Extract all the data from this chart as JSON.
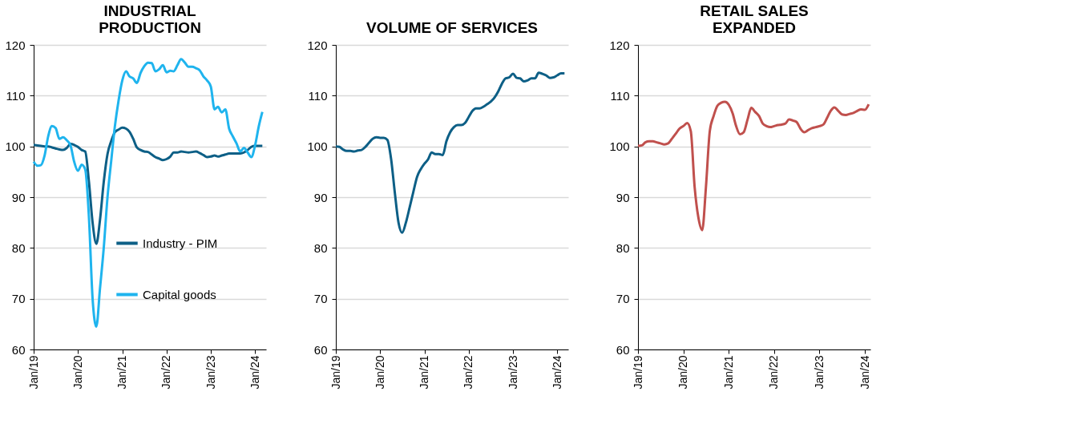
{
  "chart_data": [
    {
      "type": "line",
      "title": "INDUSTRIAL\nPRODUCTION",
      "x": [
        "2019-01",
        "2019-02",
        "2019-03",
        "2019-04",
        "2019-05",
        "2019-06",
        "2019-07",
        "2019-08",
        "2019-09",
        "2019-10",
        "2019-11",
        "2019-12",
        "2020-01",
        "2020-02",
        "2020-03",
        "2020-04",
        "2020-05",
        "2020-06",
        "2020-07",
        "2020-08",
        "2020-09",
        "2020-10",
        "2020-11",
        "2020-12",
        "2021-01",
        "2021-02",
        "2021-03",
        "2021-04",
        "2021-05",
        "2021-06",
        "2021-07",
        "2021-08",
        "2021-09",
        "2021-10",
        "2021-11",
        "2021-12",
        "2022-01",
        "2022-02",
        "2022-03",
        "2022-04",
        "2022-05",
        "2022-06",
        "2022-07",
        "2022-08",
        "2022-09",
        "2022-10",
        "2022-11",
        "2022-12",
        "2023-01",
        "2023-02",
        "2023-03",
        "2023-04",
        "2023-05",
        "2023-06",
        "2023-07",
        "2023-08",
        "2023-09",
        "2023-10",
        "2023-11",
        "2023-12",
        "2024-01",
        "2024-02",
        "2024-03"
      ],
      "series": [
        {
          "name": "Industry - PIM",
          "color": "#0d5f86",
          "values": [
            100.3,
            100.2,
            100.1,
            100.0,
            100.0,
            99.8,
            99.6,
            99.4,
            99.3,
            99.7,
            100.5,
            100.3,
            99.9,
            99.3,
            99.0,
            93,
            85,
            80.8,
            85.5,
            93,
            98.5,
            101.0,
            102.8,
            103.3,
            103.7,
            103.5,
            102.9,
            101.5,
            99.8,
            99.3,
            99.0,
            98.9,
            98.4,
            97.9,
            97.6,
            97.3,
            97.5,
            98.0,
            98.8,
            98.8,
            99.0,
            98.9,
            98.8,
            98.9,
            99.0,
            98.7,
            98.3,
            97.9,
            98.0,
            98.2,
            98.0,
            98.2,
            98.4,
            98.6,
            98.6,
            98.6,
            98.6,
            98.8,
            99.3,
            99.9,
            100.1,
            100.1,
            100.1
          ]
        },
        {
          "name": "Capital goods",
          "color": "#1fb4ee",
          "values": [
            97.0,
            96.2,
            96.3,
            98.2,
            102.0,
            104.0,
            103.6,
            101.5,
            101.8,
            101.2,
            100.2,
            97.0,
            95.2,
            96.4,
            95.5,
            86,
            70,
            64.5,
            72,
            80,
            90,
            97,
            104,
            109,
            113,
            114.8,
            113.8,
            113.4,
            112.5,
            114.5,
            115.8,
            116.5,
            116.4,
            114.8,
            115.2,
            116.0,
            114.6,
            114.9,
            114.8,
            116.0,
            117.2,
            116.5,
            115.7,
            115.7,
            115.4,
            115.0,
            113.8,
            113.0,
            111.8,
            107.3,
            107.8,
            106.7,
            107.3,
            103.5,
            102.0,
            100.6,
            99.0,
            99.7,
            98.8,
            97.9,
            100.2,
            104.0,
            106.8
          ]
        }
      ],
      "xlim": [
        "2019-01",
        "2024-04"
      ],
      "ylim": [
        60,
        120
      ],
      "yticks": [
        60,
        70,
        80,
        90,
        100,
        110,
        120
      ],
      "xticks": [
        {
          "value": "2019-01",
          "label": "Jan/19"
        },
        {
          "value": "2020-01",
          "label": "Jan/20"
        },
        {
          "value": "2021-01",
          "label": "Jan/21"
        },
        {
          "value": "2022-01",
          "label": "Jan/22"
        },
        {
          "value": "2023-01",
          "label": "Jan/23"
        },
        {
          "value": "2024-01",
          "label": "Jan/24"
        }
      ],
      "grid": "y",
      "legend": "bottom right"
    },
    {
      "type": "line",
      "title": "VOLUME OF SERVICES",
      "x": [
        "2019-01",
        "2019-02",
        "2019-03",
        "2019-04",
        "2019-05",
        "2019-06",
        "2019-07",
        "2019-08",
        "2019-09",
        "2019-10",
        "2019-11",
        "2019-12",
        "2020-01",
        "2020-02",
        "2020-03",
        "2020-04",
        "2020-05",
        "2020-06",
        "2020-07",
        "2020-08",
        "2020-09",
        "2020-10",
        "2020-11",
        "2020-12",
        "2021-01",
        "2021-02",
        "2021-03",
        "2021-04",
        "2021-05",
        "2021-06",
        "2021-07",
        "2021-08",
        "2021-09",
        "2021-10",
        "2021-11",
        "2021-12",
        "2022-01",
        "2022-02",
        "2022-03",
        "2022-04",
        "2022-05",
        "2022-06",
        "2022-07",
        "2022-08",
        "2022-09",
        "2022-10",
        "2022-11",
        "2022-12",
        "2023-01",
        "2023-02",
        "2023-03",
        "2023-04",
        "2023-05",
        "2023-06",
        "2023-07",
        "2023-08",
        "2023-09",
        "2023-10",
        "2023-11",
        "2023-12",
        "2024-01",
        "2024-02",
        "2024-03"
      ],
      "series": [
        {
          "color": "#0d5f86",
          "values": [
            100.0,
            99.9,
            99.4,
            99.1,
            99.1,
            99.0,
            99.2,
            99.3,
            99.9,
            100.7,
            101.5,
            101.8,
            101.7,
            101.7,
            101.3,
            97.5,
            91,
            85,
            83.0,
            85,
            88,
            91,
            94,
            95.5,
            96.6,
            97.5,
            98.8,
            98.5,
            98.5,
            98.3,
            101,
            102.8,
            103.8,
            104.2,
            104.2,
            104.6,
            105.8,
            107.0,
            107.5,
            107.5,
            107.8,
            108.3,
            108.8,
            109.6,
            110.8,
            112.3,
            113.4,
            113.6,
            114.3,
            113.5,
            113.4,
            112.8,
            113.0,
            113.4,
            113.4,
            114.5,
            114.3,
            114.0,
            113.5,
            113.6,
            114.0,
            114.4,
            114.4
          ]
        }
      ],
      "xlim": [
        "2019-01",
        "2024-04"
      ],
      "ylim": [
        60,
        120
      ],
      "yticks": [
        60,
        70,
        80,
        90,
        100,
        110,
        120
      ],
      "xticks": [
        {
          "value": "2019-01",
          "label": "Jan/19"
        },
        {
          "value": "2020-01",
          "label": "Jan/20"
        },
        {
          "value": "2021-01",
          "label": "Jan/21"
        },
        {
          "value": "2022-01",
          "label": "Jan/22"
        },
        {
          "value": "2023-01",
          "label": "Jan/23"
        },
        {
          "value": "2024-01",
          "label": "Jan/24"
        }
      ],
      "grid": "y"
    },
    {
      "type": "line",
      "title": "RETAIL SALES\nEXPANDED",
      "x": [
        "2019-01",
        "2019-02",
        "2019-03",
        "2019-04",
        "2019-05",
        "2019-06",
        "2019-07",
        "2019-08",
        "2019-09",
        "2019-10",
        "2019-11",
        "2019-12",
        "2020-01",
        "2020-02",
        "2020-03",
        "2020-04",
        "2020-05",
        "2020-06",
        "2020-07",
        "2020-08",
        "2020-09",
        "2020-10",
        "2020-11",
        "2020-12",
        "2021-01",
        "2021-02",
        "2021-03",
        "2021-04",
        "2021-05",
        "2021-06",
        "2021-07",
        "2021-08",
        "2021-09",
        "2021-10",
        "2021-11",
        "2021-12",
        "2022-01",
        "2022-02",
        "2022-03",
        "2022-04",
        "2022-05",
        "2022-06",
        "2022-07",
        "2022-08",
        "2022-09",
        "2022-10",
        "2022-11",
        "2022-12",
        "2023-01",
        "2023-02",
        "2023-03",
        "2023-04",
        "2023-05",
        "2023-06",
        "2023-07",
        "2023-08",
        "2023-09",
        "2023-10",
        "2023-11",
        "2023-12",
        "2024-01",
        "2024-02"
      ],
      "series": [
        {
          "color": "#c0504d",
          "values": [
            100.1,
            100.2,
            100.8,
            101.0,
            101.0,
            100.8,
            100.6,
            100.4,
            100.6,
            101.5,
            102.5,
            103.5,
            104.0,
            104.6,
            103,
            92,
            86,
            83.5,
            92,
            103,
            106,
            108.0,
            108.6,
            108.8,
            108.2,
            106.5,
            104,
            102.4,
            102.8,
            105.3,
            107.6,
            106.8,
            106.0,
            104.5,
            104.0,
            103.8,
            104.0,
            104.2,
            104.3,
            104.5,
            105.3,
            105.1,
            104.8,
            103.5,
            102.8,
            103.2,
            103.6,
            103.8,
            104.0,
            104.3,
            105.5,
            107.0,
            107.7,
            107.0,
            106.3,
            106.2,
            106.4,
            106.6,
            107.0,
            107.3,
            107.2,
            108.3
          ]
        }
      ],
      "xlim": [
        "2019-01",
        "2024-02-15"
      ],
      "ylim": [
        60,
        120
      ],
      "yticks": [
        60,
        70,
        80,
        90,
        100,
        110,
        120
      ],
      "xticks": [
        {
          "value": "2019-01",
          "label": "Jan/19"
        },
        {
          "value": "2020-01",
          "label": "Jan/20"
        },
        {
          "value": "2021-01",
          "label": "Jan/21"
        },
        {
          "value": "2022-01",
          "label": "Jan/22"
        },
        {
          "value": "2023-01",
          "label": "Jan/23"
        },
        {
          "value": "2024-01",
          "label": "Jan/24"
        }
      ],
      "grid": "y"
    }
  ]
}
